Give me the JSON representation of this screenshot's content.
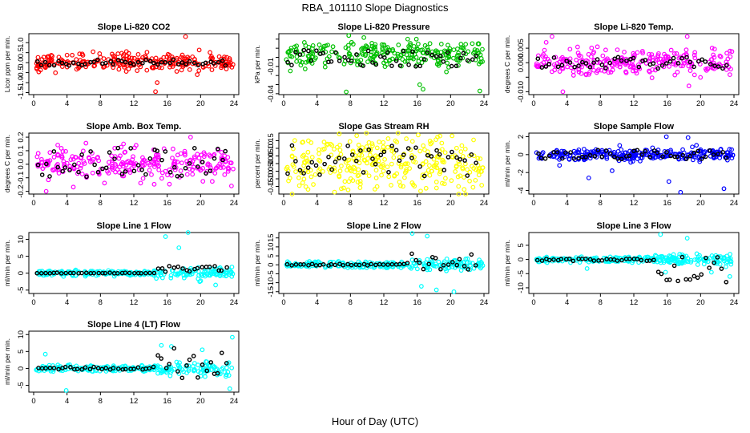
{
  "title": "RBA_101110  Slope Diagnostics",
  "xlabel": "Hour of Day (UTC)",
  "chart_data": [
    {
      "type": "scatter",
      "title": "Slope Li-820 CO2",
      "ylabel": "Licor ppm per min.",
      "xlim": [
        0,
        24
      ],
      "ylim": [
        -1.6,
        1.45
      ],
      "xticks": [
        0,
        4,
        8,
        12,
        16,
        20,
        24
      ],
      "yticks": [
        -1.5,
        -1.0,
        -0.5,
        0.0,
        0.5,
        1.0
      ],
      "ytick_labels": [
        "-1.5",
        "-1.0",
        "-0.5",
        "0.0",
        "0.5",
        "1.0"
      ],
      "color": "#ff0000",
      "series": [
        {
          "values_range": [
            -0.3,
            0.4
          ],
          "spread": 0.18,
          "n": 260,
          "outliers": [
            [
              14.6,
              -1.45
            ],
            [
              14.8,
              -1.0
            ],
            [
              18.2,
              1.3
            ],
            [
              7.9,
              0.45
            ],
            [
              12.4,
              -0.4
            ],
            [
              19.6,
              -0.6
            ]
          ]
        }
      ],
      "black_range": [
        -0.15,
        0.15
      ]
    },
    {
      "type": "scatter",
      "title": "Slope Li-820 Pressure",
      "ylabel": "kPa per min.",
      "xlim": [
        0,
        24
      ],
      "ylim": [
        -0.041,
        0.026
      ],
      "xticks": [
        0,
        4,
        8,
        12,
        16,
        20,
        24
      ],
      "yticks": [
        -0.04,
        -0.03,
        -0.02,
        -0.01,
        0.0,
        0.01,
        0.02
      ],
      "ytick_labels": [
        "-0.04",
        "",
        "",
        "-0.01",
        "",
        "",
        ""
      ],
      "color": "#00c000",
      "series": [
        {
          "values_range": [
            -0.005,
            0.012
          ],
          "spread": 0.007,
          "n": 260,
          "outliers": [
            [
              0.8,
              -0.015
            ],
            [
              7.5,
              -0.038
            ],
            [
              7.8,
              0.024
            ],
            [
              16.3,
              -0.03
            ],
            [
              16.7,
              -0.035
            ],
            [
              23.5,
              -0.037
            ],
            [
              19.5,
              -0.016
            ],
            [
              15.9,
              0.02
            ]
          ]
        }
      ],
      "black_range": [
        -0.01,
        0.008
      ]
    },
    {
      "type": "scatter",
      "title": "Slope Li-820 Temp.",
      "ylabel": "degrees C per min.",
      "xlim": [
        0,
        24
      ],
      "ylim": [
        -0.011,
        0.01
      ],
      "xticks": [
        0,
        4,
        8,
        12,
        16,
        20,
        24
      ],
      "yticks": [
        -0.01,
        -0.005,
        0.0,
        0.005
      ],
      "ytick_labels": [
        "-0.010",
        "0.000",
        "0.005"
      ],
      "ytick_positions": [
        -0.01,
        0.0,
        0.005
      ],
      "ytick_extra": [
        -0.005
      ],
      "color": "#ff00ff",
      "series": [
        {
          "values_range": [
            -0.003,
            0.003
          ],
          "spread": 0.0025,
          "n": 260,
          "outliers": [
            [
              2.2,
              0.009
            ],
            [
              3.5,
              -0.01
            ],
            [
              18.6,
              -0.008
            ],
            [
              18.4,
              0.009
            ],
            [
              1.5,
              0.007
            ]
          ]
        }
      ],
      "black_range": [
        -0.002,
        0.002
      ]
    },
    {
      "type": "scatter",
      "title": "Slope Amb. Box Temp.",
      "ylabel": "degrees C per min.",
      "xlim": [
        0,
        24
      ],
      "ylim": [
        -0.22,
        0.23
      ],
      "xticks": [
        0,
        4,
        8,
        12,
        16,
        20,
        24
      ],
      "yticks": [
        -0.2,
        -0.1,
        0.0,
        0.1,
        0.2
      ],
      "ytick_labels": [
        "-0.2",
        "-0.1",
        "0.0",
        "0.1",
        "0.2"
      ],
      "color": "#ff00ff",
      "series": [
        {
          "values_range": [
            -0.05,
            0.05
          ],
          "spread": 0.08,
          "n": 260,
          "outliers": [
            [
              1.5,
              -0.2
            ],
            [
              18.8,
              0.2
            ],
            [
              23.7,
              -0.16
            ]
          ]
        }
      ],
      "black_range": [
        -0.1,
        0.12
      ]
    },
    {
      "type": "scatter",
      "title": "Slope Gas Stream RH",
      "ylabel": "percent per min.",
      "xlim": [
        0,
        24
      ],
      "ylim": [
        -0.2,
        0.2
      ],
      "xticks": [
        0,
        4,
        8,
        12,
        16,
        20,
        24
      ],
      "yticks": [
        -0.15,
        -0.1,
        -0.05,
        0.0,
        0.05,
        0.1,
        0.15
      ],
      "ytick_labels": [
        "-0.15",
        "-0.10",
        "-0.05",
        "0.00",
        "0.05",
        "0.10",
        "0.15"
      ],
      "color": "#ffff00",
      "series": [
        {
          "values_range": [
            -0.12,
            0.14
          ],
          "spread": 0.1,
          "n": 300,
          "outliers": []
        }
      ],
      "black_range": [
        -0.1,
        0.12
      ]
    },
    {
      "type": "scatter",
      "title": "Slope Sample Flow",
      "ylabel": "ml/min per min.",
      "xlim": [
        0,
        24
      ],
      "ylim": [
        -4.4,
        2.4
      ],
      "xticks": [
        0,
        4,
        8,
        12,
        16,
        20,
        24
      ],
      "yticks": [
        -4,
        -2,
        0,
        2
      ],
      "ytick_labels": [
        "-4",
        "-2",
        "0",
        "2"
      ],
      "color": "#0000ff",
      "series": [
        {
          "values_range": [
            -0.3,
            0.3
          ],
          "spread": 0.5,
          "n": 260,
          "outliers": [
            [
              3.1,
              -1.2
            ],
            [
              6.6,
              -2.6
            ],
            [
              9.4,
              -1.8
            ],
            [
              15.9,
              2.0
            ],
            [
              17.6,
              -4.2
            ],
            [
              22.8,
              -3.8
            ],
            [
              16.2,
              -3.0
            ],
            [
              18.5,
              1.9
            ]
          ]
        }
      ],
      "black_range": [
        -0.5,
        0.5
      ]
    },
    {
      "type": "scatter",
      "title": "Slope Line 1 Flow",
      "ylabel": "ml/min per min.",
      "xlim": [
        0,
        24
      ],
      "ylim": [
        -6,
        12
      ],
      "xticks": [
        0,
        4,
        8,
        12,
        16,
        20,
        24
      ],
      "yticks": [
        -5,
        0,
        5,
        10
      ],
      "ytick_labels": [
        "-5",
        "0",
        "5",
        "10"
      ],
      "color": "#00ffff",
      "series": [
        {
          "values_range": [
            -0.5,
            0.5
          ],
          "spread": 1.2,
          "n": 260,
          "outliers": [
            [
              15.8,
              10.8
            ],
            [
              18.5,
              12
            ],
            [
              19.9,
              -2.5
            ],
            [
              21.8,
              -3.5
            ],
            [
              17.4,
              7.5
            ]
          ]
        }
      ],
      "black_range": [
        -0.8,
        3
      ]
    },
    {
      "type": "scatter",
      "title": "Slope Line 2 Flow",
      "ylabel": "ml/min per min.",
      "xlim": [
        0,
        24
      ],
      "ylim": [
        -16,
        18
      ],
      "xticks": [
        0,
        4,
        8,
        12,
        16,
        20,
        24
      ],
      "yticks": [
        -15,
        -10,
        -5,
        0,
        5,
        10,
        15
      ],
      "ytick_labels": [
        "-15",
        "-10",
        "-5",
        "0",
        "5",
        "10",
        "15"
      ],
      "color": "#00ffff",
      "series": [
        {
          "values_range": [
            -1,
            1
          ],
          "spread": 2.5,
          "n": 260,
          "outliers": [
            [
              15.4,
              17.5
            ],
            [
              17.2,
              16
            ],
            [
              18.3,
              -14
            ],
            [
              20.4,
              -15
            ],
            [
              16.5,
              -12
            ]
          ]
        }
      ],
      "black_range": [
        -8,
        10
      ]
    },
    {
      "type": "scatter",
      "title": "Slope Line 3 Flow",
      "ylabel": "ml/min per min.",
      "xlim": [
        0,
        24
      ],
      "ylim": [
        -12,
        9.5
      ],
      "xticks": [
        0,
        4,
        8,
        12,
        16,
        20,
        24
      ],
      "yticks": [
        -10,
        -5,
        0,
        5
      ],
      "ytick_labels": [
        "-10",
        "-5",
        "0",
        "5"
      ],
      "color": "#00ffff",
      "series": [
        {
          "values_range": [
            -0.8,
            0.8
          ],
          "spread": 1.2,
          "n": 260,
          "outliers": [
            [
              15.2,
              8.8
            ],
            [
              15.8,
              -4.5
            ],
            [
              18.4,
              7.5
            ],
            [
              23.5,
              -6
            ],
            [
              21.3,
              -4.5
            ],
            [
              6.4,
              -3.2
            ]
          ]
        }
      ],
      "black_range": [
        -11,
        4
      ]
    },
    {
      "type": "scatter",
      "title": "Slope Line 4 (LT) Flow",
      "ylabel": "ml/min per min.",
      "xlim": [
        0,
        24
      ],
      "ylim": [
        -7,
        11
      ],
      "xticks": [
        0,
        4,
        8,
        12,
        16,
        20,
        24
      ],
      "yticks": [
        -5,
        0,
        5,
        10
      ],
      "ytick_labels": [
        "-5",
        "0",
        "5",
        "10"
      ],
      "color": "#00ffff",
      "series": [
        {
          "values_range": [
            -0.3,
            0.3
          ],
          "spread": 2,
          "n": 230,
          "outliers": [
            [
              1.4,
              4.2
            ],
            [
              3.9,
              -6.5
            ],
            [
              15.3,
              6.8
            ],
            [
              16.5,
              6.5
            ],
            [
              20.2,
              5.5
            ],
            [
              23.8,
              9.2
            ],
            [
              23.5,
              -6
            ]
          ]
        }
      ],
      "black_range": [
        -6,
        9.5
      ]
    }
  ]
}
